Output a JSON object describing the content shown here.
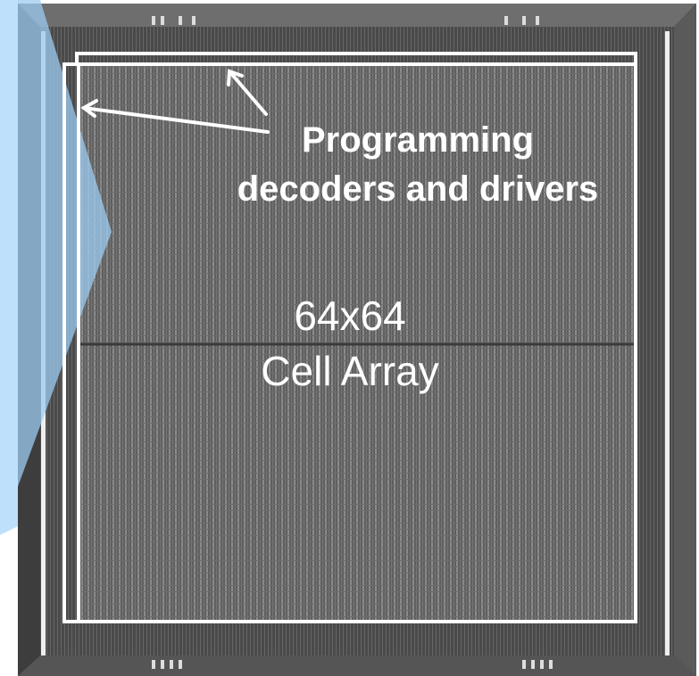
{
  "annotations": {
    "programming": {
      "line1": "Programming",
      "line2": "decoders and drivers"
    },
    "array": {
      "line1": "64x64",
      "line2": "Cell Array"
    }
  }
}
